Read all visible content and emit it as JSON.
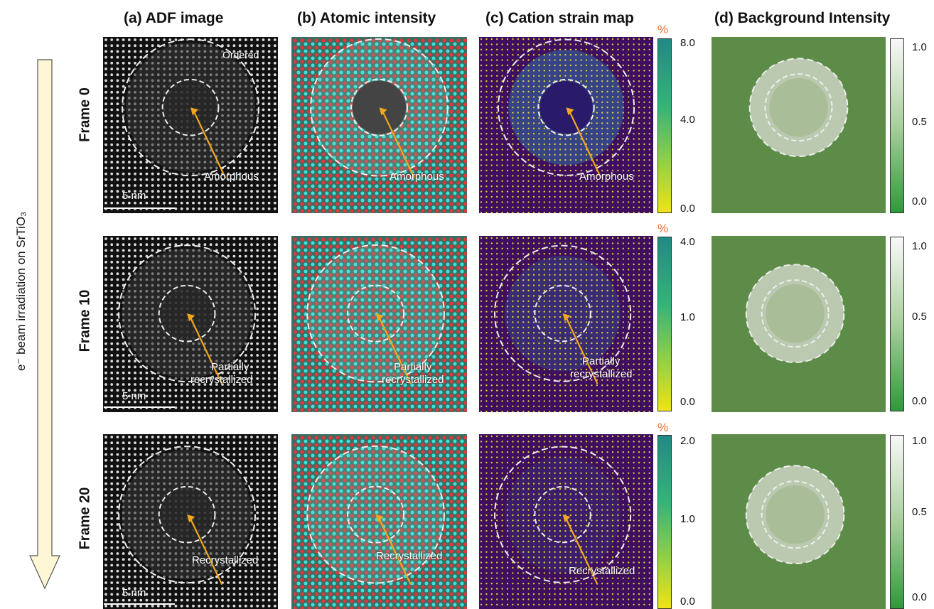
{
  "figure": {
    "column_titles": [
      "(a) ADF image",
      "(b) Atomic intensity",
      "(c) Cation strain map",
      "(d) Background Intensity"
    ],
    "row_labels": [
      "Frame 0",
      "Frame 10",
      "Frame 20"
    ],
    "side_label": "e⁻ beam irradiation on SrTiO₃",
    "ordered_label": "Ordered",
    "scale_bar": "5 nm",
    "annotations": [
      [
        "Amorphous"
      ],
      [
        "Partially",
        "recrystallized"
      ],
      [
        "Recrystallized"
      ]
    ],
    "strain_unit": "%",
    "strain_colorbars": [
      {
        "max": "8.0",
        "mid": "4.0",
        "min": "0.0"
      },
      {
        "max": "4.0",
        "mid": "1.0",
        "min": "0.0"
      },
      {
        "max": "2.0",
        "mid": "1.0",
        "min": "0.0"
      }
    ],
    "background_colorbar": {
      "max": "1.0",
      "mid": "0.5",
      "min": "0.0"
    }
  },
  "colors": {
    "arrow": "#f2a81d",
    "strain_bg": "#3e0f5e",
    "atomic_bg": "#3b6d62",
    "bg_green": "#5c8c47",
    "percent": "#e8732c"
  }
}
